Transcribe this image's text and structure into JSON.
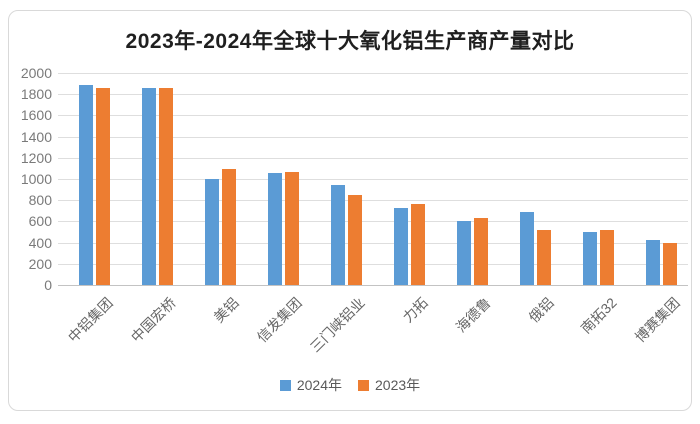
{
  "chart_data": {
    "type": "bar",
    "title": "2023年-2024年全球十大氧化铝生产商产量对比",
    "categories": [
      "中铝集团",
      "中国宏桥",
      "美铝",
      "信发集团",
      "三门峡铝业",
      "力拓",
      "海德鲁",
      "俄铝",
      "南拓32",
      "博赛集团"
    ],
    "series": [
      {
        "name": "2024年",
        "color": "#5B9BD5",
        "values": [
          1890,
          1860,
          1000,
          1060,
          940,
          730,
          605,
          685,
          500,
          425
        ]
      },
      {
        "name": "2023年",
        "color": "#ED7D31",
        "values": [
          1860,
          1860,
          1090,
          1070,
          850,
          765,
          630,
          515,
          515,
          400
        ]
      }
    ],
    "xlabel": "",
    "ylabel": "",
    "ylim": [
      0,
      2000
    ],
    "ytick_step": 200,
    "yticks": [
      "0",
      "200",
      "400",
      "600",
      "800",
      "1000",
      "1200",
      "1400",
      "1600",
      "1800",
      "2000"
    ],
    "grid": true,
    "legend_position": "bottom"
  },
  "colors": {
    "background": "#FFFFFF",
    "card_border": "#D9D9D9",
    "gridline": "#DEDEDE",
    "axis_baseline": "#C3C3C3",
    "title_text": "#1F1F1F",
    "ytick_text": "#7A7A7A",
    "xlabel_text": "#666666",
    "legend_text": "#595959",
    "series_2024": "#5B9BD5",
    "series_2023": "#ED7D31"
  }
}
